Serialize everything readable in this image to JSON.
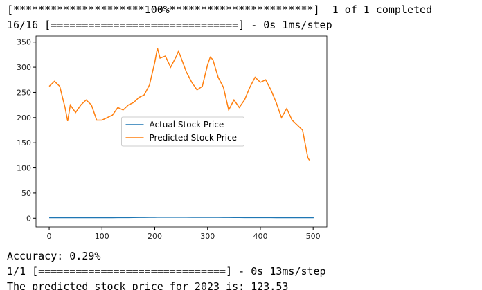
{
  "output_before": [
    "[*********************100%***********************]  1 of 1 completed",
    "16/16 [==============================] - 0s 1ms/step"
  ],
  "chart_data": {
    "type": "line",
    "x": [
      0,
      10,
      20,
      30,
      35,
      40,
      50,
      60,
      70,
      80,
      90,
      100,
      110,
      120,
      130,
      140,
      150,
      160,
      170,
      180,
      190,
      200,
      205,
      210,
      220,
      230,
      240,
      245,
      250,
      260,
      270,
      280,
      290,
      300,
      305,
      310,
      320,
      330,
      340,
      350,
      360,
      370,
      380,
      390,
      400,
      410,
      420,
      430,
      440,
      450,
      460,
      470,
      480,
      490,
      493,
      501
    ],
    "series": [
      {
        "name": "Actual Stock Price",
        "color": "#1f77b4",
        "values": [
          1,
          1,
          1,
          1,
          1,
          1,
          1,
          1,
          1,
          1,
          1,
          1,
          1,
          1,
          1.2,
          1.2,
          1.3,
          1.4,
          1.5,
          1.6,
          1.7,
          1.8,
          1.9,
          2,
          2,
          2,
          2,
          2,
          2,
          1.9,
          1.8,
          1.7,
          1.7,
          1.8,
          1.8,
          1.8,
          1.7,
          1.6,
          1.5,
          1.4,
          1.4,
          1.3,
          1.3,
          1.3,
          1.3,
          1.2,
          1.2,
          1.1,
          1.1,
          1,
          1,
          1,
          1,
          1,
          1,
          1
        ]
      },
      {
        "name": "Predicted Stock Price",
        "color": "#ff7f0e",
        "values": [
          262,
          272,
          262,
          220,
          193,
          225,
          210,
          225,
          235,
          225,
          195,
          195,
          200,
          205,
          220,
          215,
          225,
          230,
          240,
          245,
          265,
          310,
          338,
          318,
          322,
          300,
          320,
          332,
          318,
          290,
          270,
          255,
          262,
          305,
          320,
          315,
          280,
          260,
          215,
          235,
          220,
          235,
          260,
          280,
          270,
          275,
          255,
          230,
          200,
          218,
          195,
          185,
          175,
          120,
          115,
          null
        ]
      }
    ],
    "xlim": [
      -25,
      526
    ],
    "ylim": [
      -17.5,
      362
    ],
    "xticks": [
      0,
      100,
      200,
      300,
      400,
      500
    ],
    "yticks": [
      0,
      50,
      100,
      150,
      200,
      250,
      300,
      350
    ],
    "legend": "center"
  },
  "output_after": [
    "Accuracy: 0.29%",
    "1/1 [==============================] - 0s 13ms/step",
    "The predicted stock price for 2023 is: 123.53"
  ]
}
